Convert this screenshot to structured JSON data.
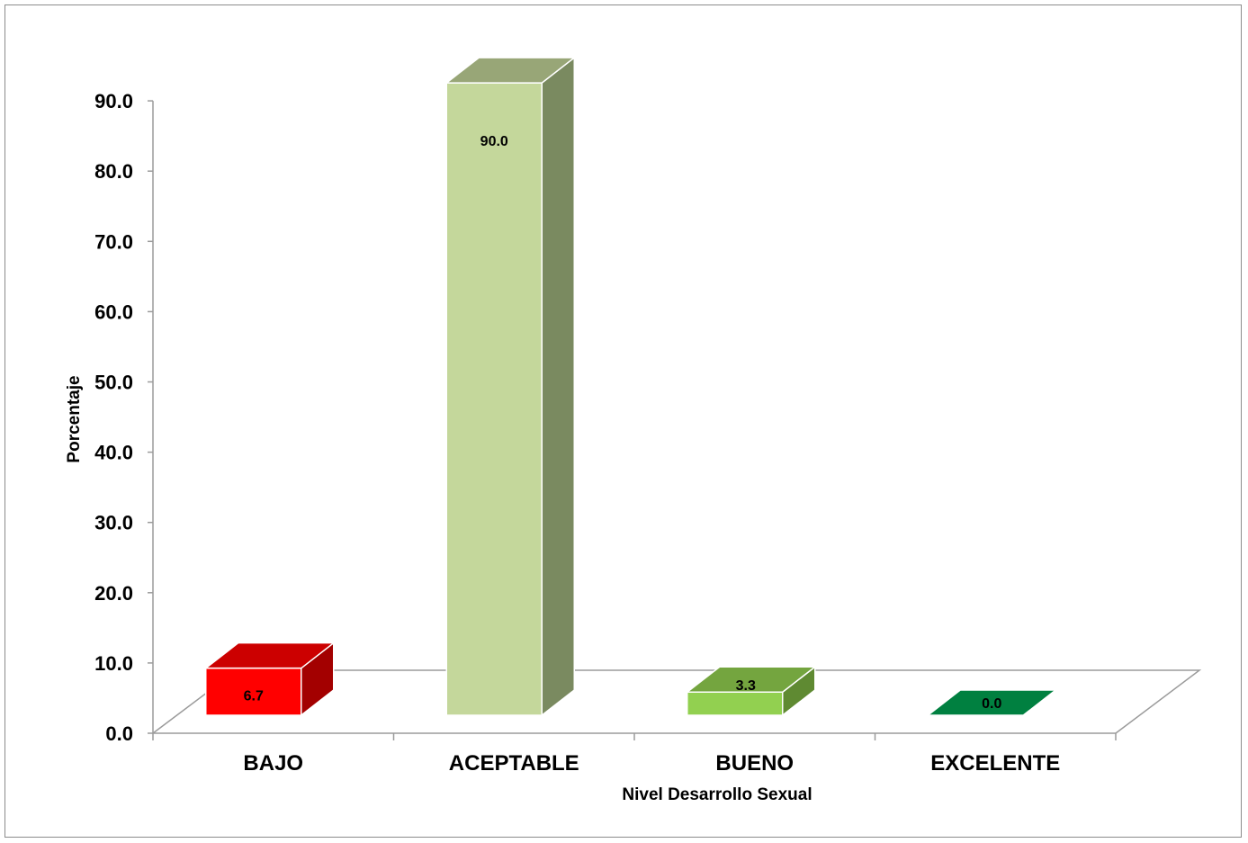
{
  "chart_data": {
    "type": "bar",
    "categories": [
      "BAJO",
      "ACEPTABLE",
      "BUENO",
      "EXCELENTE"
    ],
    "values": [
      6.7,
      90.0,
      3.3,
      0.0
    ],
    "value_labels": [
      "6.7",
      "90.0",
      "3.3",
      "0.0"
    ],
    "xlabel": "Nivel Desarrollo Sexual",
    "ylabel": "Porcentaje",
    "ylim": [
      0,
      90
    ],
    "yticks": [
      "0.0",
      "10.0",
      "20.0",
      "30.0",
      "40.0",
      "50.0",
      "60.0",
      "70.0",
      "80.0",
      "90.0"
    ],
    "grid": false,
    "legend": "none",
    "style": "3d-column",
    "colors": {
      "BAJO": {
        "front": "#ff0000",
        "top": "#cc0000",
        "side": "#a30000"
      },
      "ACEPTABLE": {
        "front": "#c4d79b",
        "top": "#98a677",
        "side": "#7a8a60"
      },
      "BUENO": {
        "front": "#92d050",
        "top": "#74a53f",
        "side": "#5f8a32"
      },
      "EXCELENTE": {
        "front": "#00a050",
        "top": "#008040",
        "side": "#006633"
      }
    }
  }
}
